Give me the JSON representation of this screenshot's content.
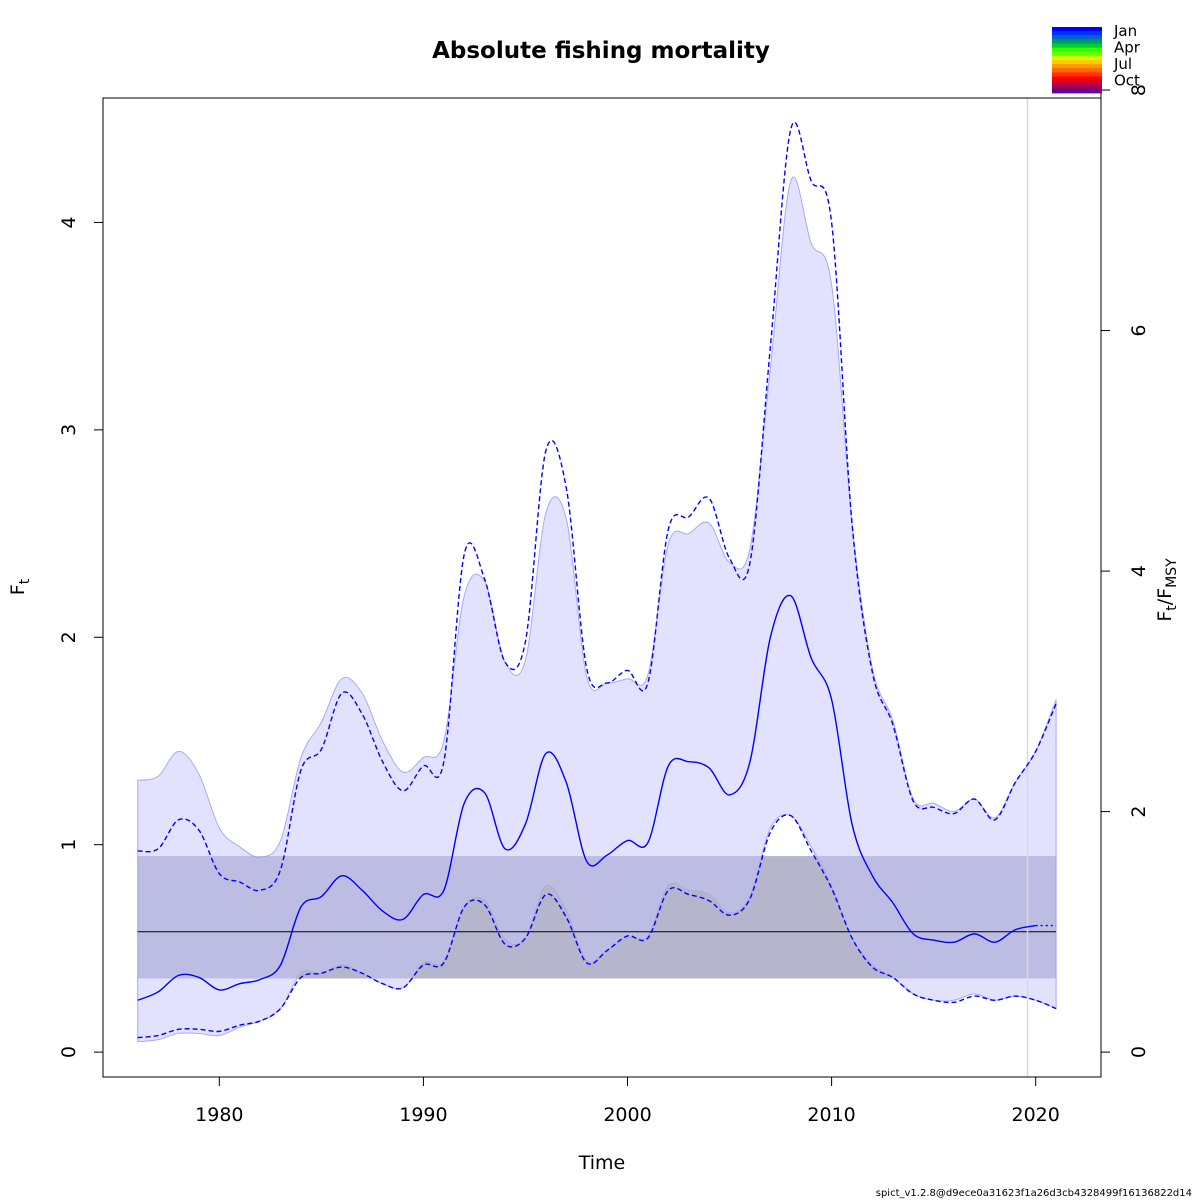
{
  "chart_data": {
    "type": "line",
    "title": "Absolute fishing mortality",
    "xlabel": "Time",
    "ylabel": "F",
    "ylabel_sub": "t",
    "y2label_parts": [
      "F",
      "t",
      "/F",
      "MSY"
    ],
    "xlim": [
      1974.3,
      2023.2
    ],
    "ylim": [
      -0.12,
      4.6
    ],
    "y2lim_ratio": 0.5798,
    "x_ticks": [
      1980,
      1990,
      2000,
      2010,
      2020
    ],
    "y_ticks": [
      0,
      1,
      2,
      3,
      4
    ],
    "y2_ticks": [
      0,
      2,
      4,
      6,
      8
    ],
    "vertical_line_x": 2019.6,
    "fmsy": {
      "value": 0.58,
      "ci": [
        0.355,
        0.945
      ],
      "x_range": [
        1976,
        2021
      ]
    },
    "ci_band": {
      "x": [
        1976,
        1977,
        1978,
        1979,
        1980,
        1981,
        1982,
        1983,
        1984,
        1985,
        1986,
        1987,
        1988,
        1989,
        1990,
        1991,
        1992,
        1993,
        1994,
        1995,
        1996,
        1997,
        1998,
        1999,
        2000,
        2001,
        2002,
        2003,
        2004,
        2005,
        2006,
        2007,
        2008,
        2009,
        2010,
        2011,
        2012,
        2013,
        2014,
        2015,
        2016,
        2017,
        2018,
        2019,
        2020,
        2021
      ],
      "upper": [
        1.31,
        1.33,
        1.45,
        1.34,
        1.08,
        0.99,
        0.94,
        1.02,
        1.42,
        1.59,
        1.8,
        1.73,
        1.5,
        1.35,
        1.42,
        1.5,
        2.2,
        2.27,
        1.88,
        1.89,
        2.6,
        2.57,
        1.81,
        1.78,
        1.8,
        1.82,
        2.45,
        2.5,
        2.55,
        2.36,
        2.43,
        3.3,
        4.2,
        3.9,
        3.7,
        2.55,
        1.85,
        1.6,
        1.22,
        1.2,
        1.16,
        1.22,
        1.13,
        1.3,
        1.45,
        1.7
      ],
      "lower": [
        0.05,
        0.06,
        0.09,
        0.09,
        0.08,
        0.12,
        0.15,
        0.21,
        0.38,
        0.38,
        0.42,
        0.38,
        0.33,
        0.31,
        0.43,
        0.44,
        0.7,
        0.73,
        0.54,
        0.55,
        0.8,
        0.68,
        0.44,
        0.49,
        0.55,
        0.56,
        0.8,
        0.78,
        0.76,
        0.67,
        0.75,
        1.08,
        1.14,
        0.99,
        0.8,
        0.55,
        0.42,
        0.36,
        0.28,
        0.25,
        0.25,
        0.28,
        0.25,
        0.27,
        0.25,
        0.21
      ]
    },
    "series": [
      {
        "x": [
          1976,
          1977,
          1978,
          1979,
          1980,
          1981,
          1982,
          1983,
          1984,
          1985,
          1986,
          1987,
          1988,
          1989,
          1990,
          1991,
          1992,
          1993,
          1994,
          1995,
          1996,
          1997,
          1998,
          1999,
          2000,
          2001,
          2002,
          2003,
          2004,
          2005,
          2006,
          2007,
          2008,
          2009,
          2010,
          2011,
          2012,
          2013,
          2014,
          2015,
          2016,
          2017,
          2018,
          2019,
          2020
        ],
        "values": [
          0.25,
          0.29,
          0.37,
          0.36,
          0.3,
          0.33,
          0.35,
          0.42,
          0.7,
          0.75,
          0.85,
          0.78,
          0.68,
          0.64,
          0.76,
          0.78,
          1.2,
          1.25,
          0.98,
          1.1,
          1.44,
          1.3,
          0.92,
          0.95,
          1.02,
          1.01,
          1.38,
          1.4,
          1.37,
          1.24,
          1.4,
          2.0,
          2.2,
          1.9,
          1.7,
          1.1,
          0.85,
          0.72,
          0.57,
          0.54,
          0.53,
          0.57,
          0.53,
          0.59,
          0.61
        ],
        "style": "solid",
        "color": "#0000FF"
      },
      {
        "x": [
          1976,
          1977,
          1978,
          1979,
          1980,
          1981,
          1982,
          1983,
          1984,
          1985,
          1986,
          1987,
          1988,
          1989,
          1990,
          1991,
          1992,
          1993,
          1994,
          1995,
          1996,
          1997,
          1998,
          1999,
          2000,
          2001,
          2002,
          2003,
          2004,
          2005,
          2006,
          2007,
          2008,
          2009,
          2010,
          2011,
          2012,
          2013,
          2014,
          2015,
          2016,
          2017,
          2018,
          2019,
          2020,
          2021
        ],
        "values": [
          0.97,
          0.98,
          1.12,
          1.07,
          0.86,
          0.82,
          0.78,
          0.88,
          1.36,
          1.46,
          1.73,
          1.63,
          1.4,
          1.26,
          1.38,
          1.4,
          2.4,
          2.28,
          1.88,
          1.98,
          2.9,
          2.72,
          1.85,
          1.78,
          1.84,
          1.78,
          2.52,
          2.58,
          2.67,
          2.38,
          2.36,
          3.4,
          4.45,
          4.2,
          4.0,
          2.55,
          1.83,
          1.58,
          1.21,
          1.18,
          1.15,
          1.22,
          1.12,
          1.3,
          1.45,
          1.68
        ],
        "style": "dashed",
        "color": "#0000FF"
      },
      {
        "x": [
          1976,
          1977,
          1978,
          1979,
          1980,
          1981,
          1982,
          1983,
          1984,
          1985,
          1986,
          1987,
          1988,
          1989,
          1990,
          1991,
          1992,
          1993,
          1994,
          1995,
          1996,
          1997,
          1998,
          1999,
          2000,
          2001,
          2002,
          2003,
          2004,
          2005,
          2006,
          2007,
          2008,
          2009,
          2010,
          2011,
          2012,
          2013,
          2014,
          2015,
          2016,
          2017,
          2018,
          2019,
          2020,
          2021
        ],
        "values": [
          0.07,
          0.08,
          0.11,
          0.11,
          0.1,
          0.13,
          0.15,
          0.21,
          0.36,
          0.38,
          0.41,
          0.38,
          0.33,
          0.31,
          0.42,
          0.43,
          0.7,
          0.71,
          0.52,
          0.55,
          0.76,
          0.65,
          0.43,
          0.49,
          0.56,
          0.55,
          0.78,
          0.76,
          0.73,
          0.66,
          0.74,
          1.06,
          1.14,
          0.97,
          0.79,
          0.55,
          0.41,
          0.36,
          0.28,
          0.25,
          0.24,
          0.27,
          0.25,
          0.27,
          0.25,
          0.21
        ],
        "style": "dashed",
        "color": "#0000FF"
      },
      {
        "x": [
          2020,
          2021
        ],
        "values": [
          0.61,
          0.61
        ],
        "style": "dotted",
        "color": "#0000FF"
      }
    ],
    "legend": {
      "placement": "top-right",
      "labels": [
        "Jan",
        "Apr",
        "Jul",
        "Oct"
      ],
      "colors": [
        "#0000FF",
        "#0033FF",
        "#0066CC",
        "#009966",
        "#00CC33",
        "#33FF00",
        "#66FF00",
        "#CCFF00",
        "#FFCC00",
        "#FF9900",
        "#FF6600",
        "#FF3300",
        "#FF0000",
        "#CC0033",
        "#990066",
        "#660099"
      ]
    },
    "colors": {
      "series": "#0000FF",
      "ci_fill": "#E2E2FF",
      "ci_edge": "#A9A9F5",
      "fmsy_band": "#BBBBDB",
      "fmsy_gray": "#D3D3D3",
      "vline": "#D9D9D9"
    }
  },
  "footer": "spict_v1.2.8@d9ece0a31623f1a26d3cb4328499f16136822d14"
}
